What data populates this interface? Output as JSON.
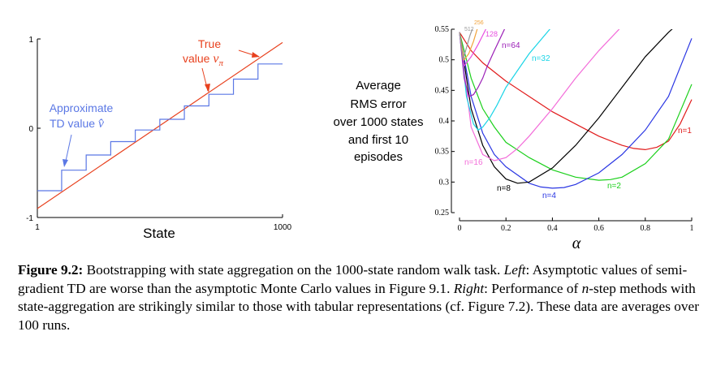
{
  "chart_data": [
    {
      "type": "line",
      "xlabel": "State",
      "ylabel": "",
      "xlim": [
        1,
        1000
      ],
      "ylim": [
        -1,
        1
      ],
      "x_ticks": [
        "1",
        "1000"
      ],
      "y_ticks": [
        "1",
        "0",
        "-1"
      ],
      "grid": false,
      "series": [
        {
          "name": "True value v_π",
          "color": "#e8411e",
          "x": [
            1,
            1000
          ],
          "y": [
            -0.9,
            0.96
          ]
        },
        {
          "name": "Approximate TD value v̂",
          "color": "#5b78e5",
          "steps": [
            {
              "x_start": 1,
              "x_end": 100,
              "y": -0.7
            },
            {
              "x_start": 100,
              "x_end": 200,
              "y": -0.47
            },
            {
              "x_start": 200,
              "x_end": 300,
              "y": -0.3
            },
            {
              "x_start": 300,
              "x_end": 400,
              "y": -0.15
            },
            {
              "x_start": 400,
              "x_end": 500,
              "y": -0.02
            },
            {
              "x_start": 500,
              "x_end": 600,
              "y": 0.1
            },
            {
              "x_start": 600,
              "x_end": 700,
              "y": 0.25
            },
            {
              "x_start": 700,
              "x_end": 800,
              "y": 0.38
            },
            {
              "x_start": 800,
              "x_end": 900,
              "y": 0.55
            },
            {
              "x_start": 900,
              "x_end": 1000,
              "y": 0.72
            }
          ]
        }
      ],
      "annotations": [
        {
          "line1": "True",
          "line2": "value ",
          "math": "v",
          "sub": "π",
          "color": "#e8411e"
        },
        {
          "line1": "Approximate",
          "line2": "TD value ",
          "math": "v̂",
          "color": "#5b78e5"
        }
      ]
    },
    {
      "type": "line",
      "title_lines": [
        "Average",
        "RMS error",
        "over 1000 states",
        "and first 10",
        "episodes"
      ],
      "xlabel": "α",
      "xlim": [
        0,
        1
      ],
      "ylim": [
        0.25,
        0.55
      ],
      "x_ticks": [
        "0",
        "0.2",
        "0.4",
        "0.6",
        "0.8",
        "1"
      ],
      "y_ticks": [
        "0.25",
        "0.3",
        "0.35",
        "0.4",
        "0.45",
        "0.5",
        "0.55"
      ],
      "grid": false,
      "series": [
        {
          "name": "n=1",
          "color": "#e11b1b",
          "x": [
            0,
            0.05,
            0.1,
            0.2,
            0.3,
            0.4,
            0.5,
            0.6,
            0.7,
            0.75,
            0.8,
            0.85,
            0.9,
            0.95,
            1.0
          ],
          "y": [
            0.545,
            0.515,
            0.495,
            0.465,
            0.44,
            0.415,
            0.395,
            0.375,
            0.36,
            0.355,
            0.353,
            0.357,
            0.367,
            0.395,
            0.435
          ]
        },
        {
          "name": "n=2",
          "color": "#1bd01b",
          "x": [
            0,
            0.05,
            0.1,
            0.15,
            0.2,
            0.3,
            0.4,
            0.5,
            0.6,
            0.65,
            0.7,
            0.8,
            0.9,
            0.95,
            1.0
          ],
          "y": [
            0.545,
            0.47,
            0.42,
            0.39,
            0.365,
            0.34,
            0.32,
            0.308,
            0.303,
            0.304,
            0.308,
            0.33,
            0.37,
            0.415,
            0.46
          ]
        },
        {
          "name": "n=4",
          "color": "#2a36e3",
          "x": [
            0,
            0.05,
            0.1,
            0.15,
            0.2,
            0.3,
            0.35,
            0.4,
            0.45,
            0.5,
            0.6,
            0.7,
            0.8,
            0.9,
            1.0
          ],
          "y": [
            0.545,
            0.44,
            0.38,
            0.345,
            0.325,
            0.298,
            0.292,
            0.29,
            0.291,
            0.296,
            0.315,
            0.345,
            0.385,
            0.44,
            0.535
          ]
        },
        {
          "name": "n=8",
          "color": "#000000",
          "x": [
            0,
            0.05,
            0.1,
            0.15,
            0.2,
            0.25,
            0.3,
            0.4,
            0.5,
            0.6,
            0.7,
            0.8,
            0.9,
            0.93
          ],
          "y": [
            0.545,
            0.42,
            0.36,
            0.325,
            0.305,
            0.298,
            0.3,
            0.323,
            0.36,
            0.405,
            0.455,
            0.505,
            0.545,
            0.555
          ]
        },
        {
          "name": "n=16",
          "color": "#f36cd9",
          "x": [
            0,
            0.05,
            0.1,
            0.15,
            0.2,
            0.25,
            0.3,
            0.4,
            0.5,
            0.6,
            0.7
          ],
          "y": [
            0.545,
            0.39,
            0.345,
            0.335,
            0.34,
            0.355,
            0.375,
            0.42,
            0.47,
            0.515,
            0.555
          ]
        },
        {
          "name": "n=32",
          "color": "#19d4e6",
          "x": [
            0,
            0.03,
            0.06,
            0.08,
            0.1,
            0.13,
            0.16,
            0.2,
            0.3,
            0.4
          ],
          "y": [
            0.545,
            0.44,
            0.395,
            0.385,
            0.39,
            0.405,
            0.425,
            0.455,
            0.51,
            0.555
          ]
        },
        {
          "name": "n=64",
          "color": "#9b1fb7",
          "x": [
            0,
            0.02,
            0.04,
            0.06,
            0.08,
            0.1,
            0.12,
            0.15,
            0.2
          ],
          "y": [
            0.545,
            0.47,
            0.44,
            0.443,
            0.455,
            0.47,
            0.49,
            0.515,
            0.555
          ]
        },
        {
          "name": "128",
          "color": "#e74fe0",
          "x": [
            0,
            0.02,
            0.05,
            0.08,
            0.1,
            0.12
          ],
          "y": [
            0.545,
            0.49,
            0.505,
            0.525,
            0.54,
            0.555
          ]
        },
        {
          "name": "256",
          "color": "#f2a33a",
          "x": [
            0,
            0.02,
            0.04,
            0.06,
            0.08
          ],
          "y": [
            0.545,
            0.5,
            0.51,
            0.53,
            0.555
          ]
        },
        {
          "name": "512",
          "color": "#999999",
          "x": [
            0,
            0.015,
            0.03,
            0.045,
            0.06
          ],
          "y": [
            0.545,
            0.5,
            0.52,
            0.54,
            0.555
          ]
        }
      ]
    }
  ],
  "caption": {
    "label": "Figure 9.2:",
    "text_1": " Bootstrapping with state aggregation on the 1000-state random walk task. ",
    "left": "Left",
    "text_2": ": Asymptotic values of semi-gradient TD are worse than the asymptotic Monte Carlo values in Figure 9.1. ",
    "right": "Right",
    "text_3": ": Performance of ",
    "n": "n",
    "text_4": "-step methods with state-aggregation are strikingly similar to those with tabular representations (cf. Figure 7.2). These data are averages over 100 runs."
  }
}
